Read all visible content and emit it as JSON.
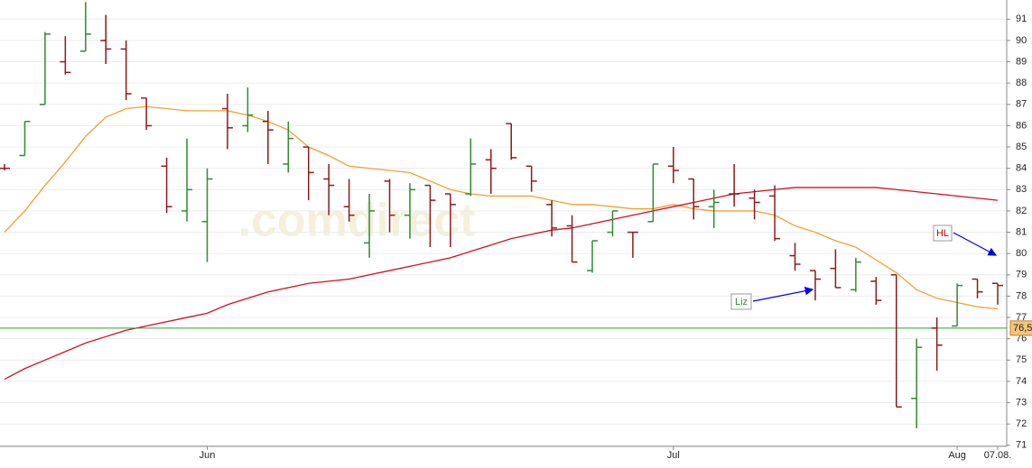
{
  "chart_data": {
    "type": "ohlc",
    "watermark": ".comdirect",
    "categories": [
      null,
      null,
      null,
      null,
      null,
      null,
      null,
      null,
      null,
      null,
      "Jun",
      null,
      null,
      null,
      null,
      null,
      null,
      null,
      null,
      null,
      null,
      null,
      null,
      null,
      null,
      null,
      null,
      null,
      null,
      null,
      null,
      null,
      null,
      "Jul",
      null,
      null,
      null,
      null,
      null,
      null,
      null,
      null,
      null,
      null,
      null,
      null,
      null,
      "Aug",
      null,
      "07.08."
    ],
    "open": [
      84,
      84.6,
      87,
      89,
      89.5,
      90,
      89.6,
      87.3,
      84.1,
      82,
      81.5,
      86.8,
      86,
      86.2,
      84.2,
      85,
      83.5,
      82.2,
      80.5,
      83.4,
      81.8,
      83.2,
      82.8,
      82.8,
      84.4,
      86.1,
      84.1,
      82.3,
      81.3,
      79.2,
      81,
      81,
      81.5,
      84.1,
      83.5,
      82.2,
      82.8,
      82.6,
      82.7,
      79.9,
      79.2,
      79.3,
      78.3,
      78.7,
      79,
      73.2,
      76.5,
      76.6,
      78.8,
      78.6
    ],
    "high": [
      84.2,
      86.2,
      90.4,
      90.2,
      91.8,
      91.2,
      90,
      87.3,
      84.5,
      85.4,
      84,
      87.5,
      87.8,
      86.7,
      86.2,
      85,
      84.2,
      83.5,
      82.8,
      83.5,
      83.3,
      83.2,
      82.8,
      85.4,
      84.9,
      86.1,
      84.1,
      82.5,
      81.8,
      80.6,
      82,
      81,
      84.2,
      85,
      83.5,
      83,
      84.2,
      83,
      83.2,
      80.5,
      79.2,
      80.2,
      79.8,
      78.9,
      79,
      76,
      77,
      78.6,
      78.8,
      78.6
    ],
    "low": [
      83.9,
      84.6,
      87,
      88.4,
      89.5,
      88.9,
      87.2,
      85.8,
      81.9,
      81.5,
      79.6,
      84.9,
      85.7,
      84.2,
      83.8,
      82.5,
      81.8,
      81.5,
      79.8,
      81,
      80.7,
      80.3,
      80.3,
      82.7,
      82.8,
      84.4,
      82.9,
      80.8,
      79.6,
      79.1,
      80.8,
      79.8,
      81.5,
      83.3,
      81.6,
      81.2,
      82.2,
      81.6,
      80.6,
      79.2,
      77.8,
      78.4,
      78.2,
      77.6,
      72.8,
      71.8,
      74.5,
      76.6,
      77.9,
      77.6
    ],
    "close": [
      84,
      86.2,
      90.3,
      88.5,
      90.3,
      89.6,
      87.5,
      86,
      82.2,
      83,
      83.5,
      85.9,
      86.5,
      85.8,
      85.4,
      83.8,
      83.2,
      81.8,
      82,
      81.8,
      83,
      82.5,
      82.3,
      84.2,
      84,
      84.5,
      83.4,
      81.2,
      79.6,
      80.6,
      82,
      81,
      84.2,
      83.9,
      82.2,
      82.4,
      82.8,
      82.4,
      80.7,
      79.5,
      78.8,
      78.4,
      79.6,
      77.8,
      72.8,
      75.6,
      75.7,
      78.5,
      78.2,
      78.5
    ],
    "up_color": "#2e8b2e",
    "down_color": "#8b1a1a",
    "lines": [
      {
        "color": "#f0a030",
        "values": [
          81.0,
          82.0,
          83.2,
          84.3,
          85.5,
          86.4,
          86.8,
          86.9,
          86.8,
          86.7,
          86.7,
          86.7,
          86.5,
          86.2,
          85.8,
          85.0,
          84.6,
          84.1,
          84.0,
          83.9,
          83.8,
          83.4,
          83.0,
          82.8,
          82.7,
          82.7,
          82.7,
          82.5,
          82.3,
          82.3,
          82.2,
          82.1,
          82.1,
          82.3,
          82.1,
          82.0,
          82.0,
          82.0,
          81.8,
          81.3,
          81.0,
          80.6,
          80.3,
          79.7,
          79.1,
          78.3,
          77.9,
          77.7,
          77.5,
          77.4
        ]
      },
      {
        "color": "#d01020",
        "values": [
          74.1,
          74.6,
          75.0,
          75.4,
          75.8,
          76.1,
          76.4,
          76.6,
          76.8,
          77.0,
          77.2,
          77.6,
          77.9,
          78.2,
          78.4,
          78.6,
          78.7,
          78.8,
          79.0,
          79.2,
          79.4,
          79.6,
          79.8,
          80.1,
          80.4,
          80.7,
          80.9,
          81.1,
          81.2,
          81.4,
          81.6,
          81.8,
          82.0,
          82.2,
          82.4,
          82.6,
          82.8,
          82.9,
          83.0,
          83.1,
          83.1,
          83.1,
          83.1,
          83.1,
          83.0,
          82.9,
          82.8,
          82.7,
          82.6,
          82.5
        ]
      }
    ],
    "hline": {
      "value": 76.5,
      "label": "76,5",
      "color": "#2ca02c",
      "label_color": "#f5c57a"
    },
    "annotations": [
      {
        "text": "HL",
        "color": "#c00000"
      },
      {
        "text": "Liz",
        "color": "#2e8b2e"
      }
    ],
    "ylim": [
      70.95,
      91.9
    ],
    "yticks": [
      71,
      72,
      73,
      74,
      75,
      76,
      77,
      78,
      79,
      80,
      81,
      82,
      83,
      84,
      85,
      86,
      87,
      88,
      89,
      90,
      91
    ],
    "grid": true
  }
}
